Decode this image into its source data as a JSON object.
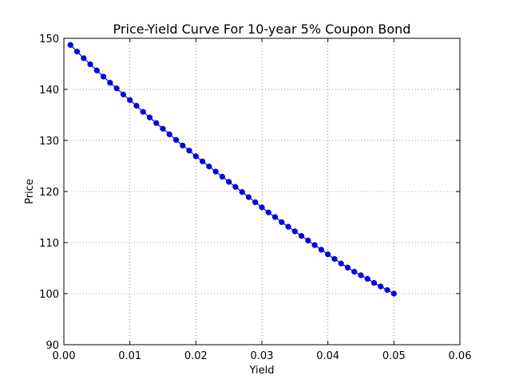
{
  "chart_data": {
    "type": "line",
    "title": "Price-Yield Curve For 10-year 5% Coupon Bond",
    "xlabel": "Yield",
    "ylabel": "Price",
    "xlim": [
      0.0,
      0.06
    ],
    "ylim": [
      90,
      150
    ],
    "xticks": [
      "0.00",
      "0.01",
      "0.02",
      "0.03",
      "0.04",
      "0.05",
      "0.06"
    ],
    "yticks": [
      "90",
      "100",
      "110",
      "120",
      "130",
      "140",
      "150"
    ],
    "grid": true,
    "series": [
      {
        "color": "#0000ff",
        "marker": "circle",
        "x": [
          0.001,
          0.002,
          0.003,
          0.004,
          0.005,
          0.006,
          0.007,
          0.008,
          0.009,
          0.01,
          0.011,
          0.012,
          0.013,
          0.014,
          0.015,
          0.016,
          0.017,
          0.018,
          0.019,
          0.02,
          0.021,
          0.022,
          0.023,
          0.024,
          0.025,
          0.026,
          0.027,
          0.028,
          0.029,
          0.03,
          0.031,
          0.032,
          0.033,
          0.034,
          0.035,
          0.036,
          0.037,
          0.038,
          0.039,
          0.04,
          0.041,
          0.042,
          0.043,
          0.044,
          0.045,
          0.046,
          0.047,
          0.048,
          0.049,
          0.05
        ],
        "y": [
          148.7,
          147.4,
          146.1,
          144.9,
          143.7,
          142.5,
          141.3,
          140.2,
          139.0,
          137.9,
          136.8,
          135.6,
          134.5,
          133.4,
          132.3,
          131.2,
          130.1,
          129.0,
          128.0,
          126.9,
          125.9,
          124.9,
          123.9,
          122.9,
          121.9,
          120.9,
          119.9,
          118.9,
          117.9,
          116.9,
          115.9,
          115.0,
          114.0,
          113.1,
          112.2,
          111.3,
          110.4,
          109.5,
          108.6,
          107.7,
          106.8,
          105.9,
          105.1,
          104.3,
          103.6,
          102.9,
          102.1,
          101.4,
          100.7,
          100.0
        ]
      }
    ]
  }
}
